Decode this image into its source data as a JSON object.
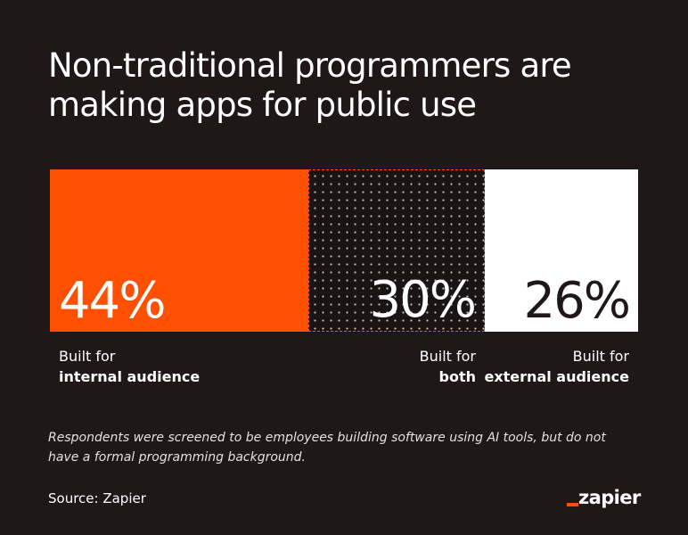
{
  "title_lines": [
    "Non-traditional programmers are",
    "making apps for public use"
  ],
  "chart_data": {
    "type": "bar",
    "orientation": "stacked-horizontal-100",
    "title": "Non-traditional programmers are making apps for public use",
    "categories": [
      "Built for internal audience",
      "Built for both",
      "Built for external audience"
    ],
    "values": [
      44,
      30,
      26
    ],
    "value_labels": [
      "44%",
      "30%",
      "26%"
    ],
    "label_lines": [
      [
        "Built for",
        "internal audience"
      ],
      [
        "Built for",
        "both"
      ],
      [
        "Built for",
        "external audience"
      ]
    ],
    "colors": [
      "#ff4f00",
      "#1b1414",
      "#ffffff"
    ],
    "patterns": [
      "solid",
      "dots",
      "solid"
    ],
    "value_text_colors": [
      "#ffffff",
      "#ffffff",
      "#201818"
    ],
    "label_align": [
      "left",
      "right",
      "right"
    ],
    "ylim": [
      0,
      100
    ],
    "grid": false,
    "legend": "none"
  },
  "footnote_lines": [
    "Respondents were screened to be employees building software using AI tools, but do not",
    "have a formal programming background."
  ],
  "source": "Source: Zapier",
  "logo": {
    "text": "zapier",
    "accent_color": "#ff4f00"
  },
  "colors": {
    "background": "#201818",
    "accent": "#ff4f00",
    "text": "#ffffff"
  }
}
